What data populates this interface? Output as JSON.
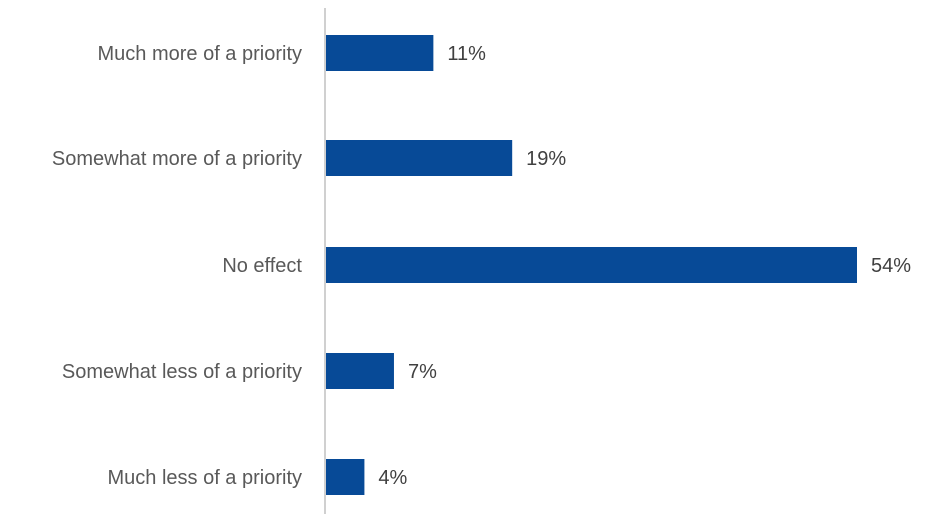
{
  "chart_data": {
    "type": "bar",
    "orientation": "horizontal",
    "categories": [
      "Much more of a priority",
      "Somewhat more of a priority",
      "No effect",
      "Somewhat less of a priority",
      "Much less of a priority"
    ],
    "values": [
      11,
      19,
      54,
      7,
      4
    ],
    "data_labels": [
      "11%",
      "19%",
      "54%",
      "7%",
      "4%"
    ],
    "unit": "%",
    "xlim": [
      0,
      54
    ],
    "grid": false,
    "legend": "none",
    "colors": {
      "bar": "#074a97",
      "axis": "#d0d0d0",
      "category_text": "#595959",
      "label_text": "#404040"
    }
  }
}
